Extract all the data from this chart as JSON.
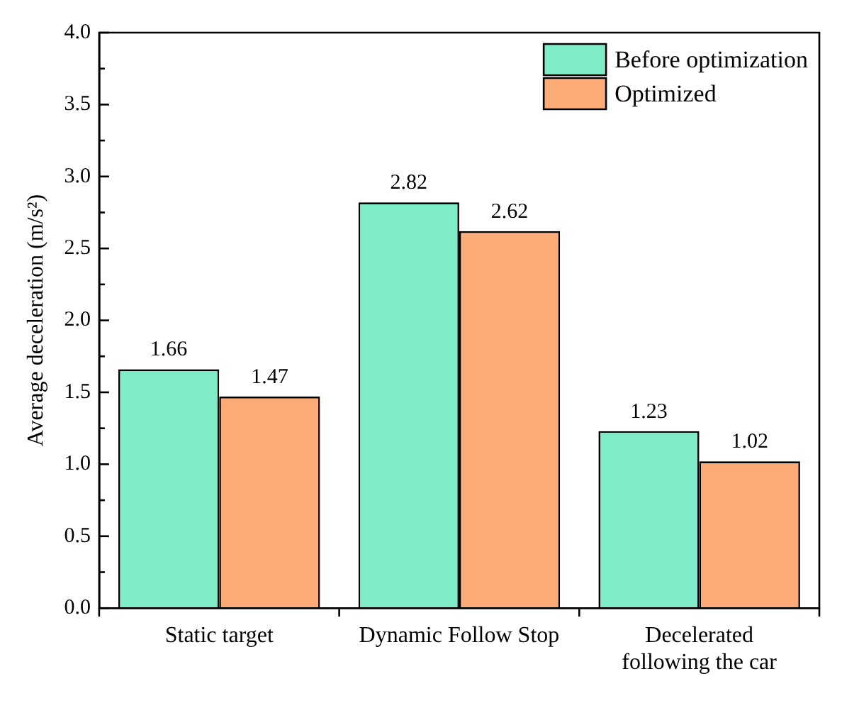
{
  "chart_data": {
    "type": "bar",
    "ylabel": "Average deceleration (m/s²)",
    "categories": [
      "Static target",
      "Dynamic Follow Stop",
      "Decelerated\nfollowing the car"
    ],
    "series": [
      {
        "name": "Before optimization",
        "color": "#7eecc8",
        "values": [
          1.66,
          2.82,
          1.23
        ]
      },
      {
        "name": "Optimized",
        "color": "#fdab76",
        "values": [
          1.47,
          2.62,
          1.02
        ]
      }
    ],
    "ylim": [
      0,
      4
    ],
    "yticks": [
      {
        "value": 0,
        "label": "0.0"
      },
      {
        "value": 0.25,
        "label": null
      },
      {
        "value": 0.5,
        "label": "0.5"
      },
      {
        "value": 0.75,
        "label": null
      },
      {
        "value": 1,
        "label": "1.0"
      },
      {
        "value": 1.25,
        "label": null
      },
      {
        "value": 1.5,
        "label": "1.5"
      },
      {
        "value": 1.75,
        "label": null
      },
      {
        "value": 2,
        "label": "2.0"
      },
      {
        "value": 2.25,
        "label": null
      },
      {
        "value": 2.5,
        "label": "2.5"
      },
      {
        "value": 2.75,
        "label": null
      },
      {
        "value": 3,
        "label": "3.0"
      },
      {
        "value": 3.25,
        "label": null
      },
      {
        "value": 3.5,
        "label": "3.5"
      },
      {
        "value": 3.75,
        "label": null
      },
      {
        "value": 4,
        "label": "4.0"
      }
    ],
    "grid": false,
    "legend": "top right",
    "data_labels": true
  }
}
